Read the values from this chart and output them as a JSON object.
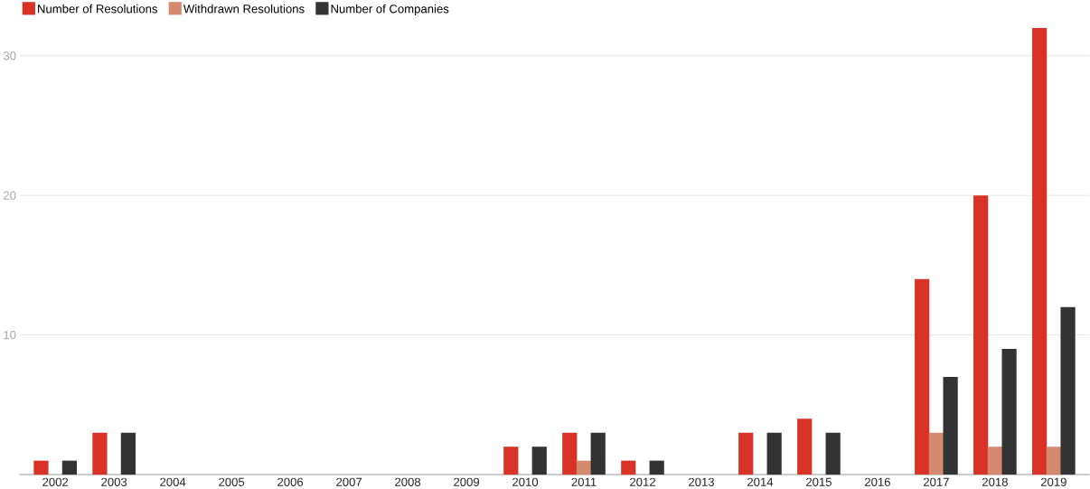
{
  "chart_data": {
    "type": "bar",
    "categories": [
      "2002",
      "2003",
      "2004",
      "2005",
      "2006",
      "2007",
      "2008",
      "2009",
      "2010",
      "2011",
      "2012",
      "2013",
      "2014",
      "2015",
      "2016",
      "2017",
      "2018",
      "2019"
    ],
    "series": [
      {
        "name": "Number of Resolutions",
        "color": "#d93327",
        "values": [
          1,
          3,
          0,
          0,
          0,
          0,
          0,
          0,
          2,
          3,
          1,
          0,
          3,
          4,
          0,
          14,
          20,
          32
        ]
      },
      {
        "name": "Withdrawn Resolutions",
        "color": "#d58a6f",
        "values": [
          0,
          0,
          0,
          0,
          0,
          0,
          0,
          0,
          0,
          1,
          0,
          0,
          0,
          0,
          0,
          3,
          2,
          2
        ]
      },
      {
        "name": "Number of Companies",
        "color": "#333333",
        "values": [
          1,
          3,
          0,
          0,
          0,
          0,
          0,
          0,
          2,
          3,
          1,
          0,
          3,
          3,
          0,
          7,
          9,
          12
        ]
      }
    ],
    "ylim": [
      0,
      34
    ],
    "yticks": [
      {
        "value": 0,
        "label": null
      },
      10,
      20,
      30
    ],
    "grid": "y",
    "legend": "top left"
  }
}
